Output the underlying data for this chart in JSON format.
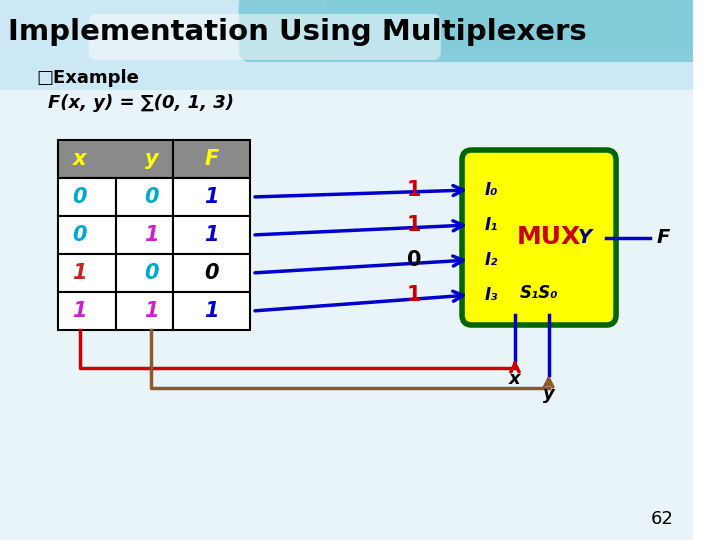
{
  "title": "Implementation Using Multiplexers",
  "subtitle_bullet": "□Example",
  "formula": "F(x, y) = ∑(0, 1, 3)",
  "table_rows": [
    [
      "0",
      "0",
      "1"
    ],
    [
      "0",
      "1",
      "1"
    ],
    [
      "1",
      "0",
      "0"
    ],
    [
      "1",
      "1",
      "1"
    ]
  ],
  "f_values": [
    "1",
    "1",
    "0",
    "1"
  ],
  "mux_inputs": [
    "I₀",
    "I₁",
    "I₂",
    "I₃"
  ],
  "mux_label": "MUX",
  "mux_output_label": "Y",
  "output_label": "F",
  "select_label": "S₁S₀",
  "page_number": "62",
  "header_bg": "#8a8a8a",
  "header_text_color": "#ffff00",
  "row_colors_x": [
    "#00aacc",
    "#00aacc",
    "#cc2222",
    "#cc22cc"
  ],
  "row_colors_y": [
    "#00aacc",
    "#cc22cc",
    "#00aacc",
    "#cc22cc"
  ],
  "row_f_color_1": "#0000cc",
  "row_f_color_0": "#000000",
  "mux_box_fill": "#ffff00",
  "mux_box_border": "#006600",
  "mux_text_color": "#cc0000",
  "mux_y_color": "#000080",
  "i_label_color": "#000080",
  "arrow_color": "#0000cc",
  "f_value_color_1": "#cc0000",
  "f_value_color_0": "#000000",
  "x_connect_color": "#cc0000",
  "y_connect_color": "#8B5A2B",
  "select_line_color": "#0000cc",
  "output_line_color": "#0000cc",
  "bg_top_color": "#cce8f4",
  "wave_color1": "#5abccc",
  "wave_color2": "#80ccd8"
}
